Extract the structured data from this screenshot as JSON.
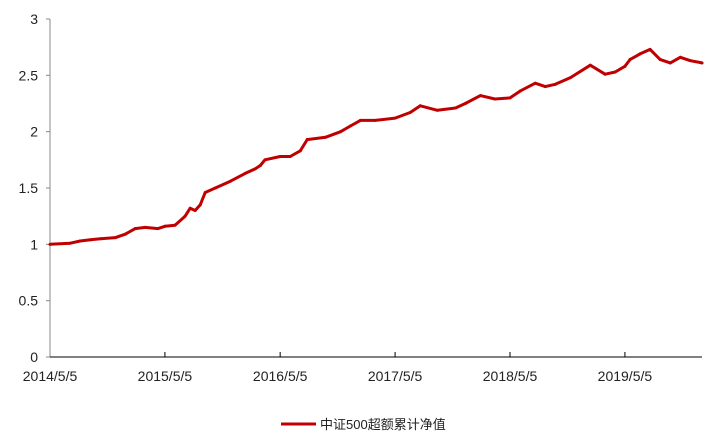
{
  "chart_data": {
    "type": "line",
    "title": "",
    "xlabel": "",
    "ylabel": "",
    "ylim": [
      0,
      3
    ],
    "yticks": [
      "0",
      "0.5",
      "1",
      "1.5",
      "2",
      "2.5",
      "3"
    ],
    "xticks": [
      "2014/5/5",
      "2015/5/5",
      "2016/5/5",
      "2017/5/5",
      "2018/5/5",
      "2019/5/5"
    ],
    "grid": false,
    "legend_position": "bottom",
    "series": [
      {
        "name": "中证500超额累计净值",
        "color": "#C00000",
        "points": [
          [
            "2014-05-05",
            1.0
          ],
          [
            "2014-07-08",
            1.01
          ],
          [
            "2014-08-09",
            1.03
          ],
          [
            "2014-09-10",
            1.04
          ],
          [
            "2014-10-12",
            1.05
          ],
          [
            "2014-11-29",
            1.06
          ],
          [
            "2014-12-30",
            1.09
          ],
          [
            "2015-01-31",
            1.14
          ],
          [
            "2015-03-03",
            1.15
          ],
          [
            "2015-04-13",
            1.14
          ],
          [
            "2015-05-05",
            1.16
          ],
          [
            "2015-06-06",
            1.17
          ],
          [
            "2015-07-08",
            1.25
          ],
          [
            "2015-07-24",
            1.32
          ],
          [
            "2015-08-09",
            1.3
          ],
          [
            "2015-08-25",
            1.35
          ],
          [
            "2015-09-10",
            1.46
          ],
          [
            "2015-10-12",
            1.5
          ],
          [
            "2015-11-29",
            1.56
          ],
          [
            "2016-01-15",
            1.63
          ],
          [
            "2016-02-16",
            1.67
          ],
          [
            "2016-03-03",
            1.7
          ],
          [
            "2016-03-18",
            1.75
          ],
          [
            "2016-05-05",
            1.78
          ],
          [
            "2016-06-06",
            1.78
          ],
          [
            "2016-07-08",
            1.83
          ],
          [
            "2016-07-30",
            1.93
          ],
          [
            "2016-09-26",
            1.95
          ],
          [
            "2016-11-13",
            2.0
          ],
          [
            "2016-12-14",
            2.05
          ],
          [
            "2017-01-15",
            2.1
          ],
          [
            "2017-03-03",
            2.1
          ],
          [
            "2017-05-05",
            2.12
          ],
          [
            "2017-06-22",
            2.17
          ],
          [
            "2017-07-24",
            2.23
          ],
          [
            "2017-09-16",
            2.19
          ],
          [
            "2017-11-13",
            2.21
          ],
          [
            "2017-12-14",
            2.25
          ],
          [
            "2018-01-31",
            2.32
          ],
          [
            "2018-03-18",
            2.29
          ],
          [
            "2018-05-05",
            2.3
          ],
          [
            "2018-06-06",
            2.36
          ],
          [
            "2018-07-24",
            2.43
          ],
          [
            "2018-08-25",
            2.4
          ],
          [
            "2018-09-26",
            2.42
          ],
          [
            "2018-11-13",
            2.48
          ],
          [
            "2019-01-15",
            2.59
          ],
          [
            "2019-03-03",
            2.51
          ],
          [
            "2019-04-04",
            2.53
          ],
          [
            "2019-05-05",
            2.58
          ],
          [
            "2019-05-21",
            2.64
          ],
          [
            "2019-06-22",
            2.69
          ],
          [
            "2019-07-24",
            2.73
          ],
          [
            "2019-08-25",
            2.64
          ],
          [
            "2019-09-26",
            2.61
          ],
          [
            "2019-10-28",
            2.66
          ],
          [
            "2019-11-29",
            2.63
          ],
          [
            "2020-01-05",
            2.61
          ]
        ]
      }
    ]
  }
}
